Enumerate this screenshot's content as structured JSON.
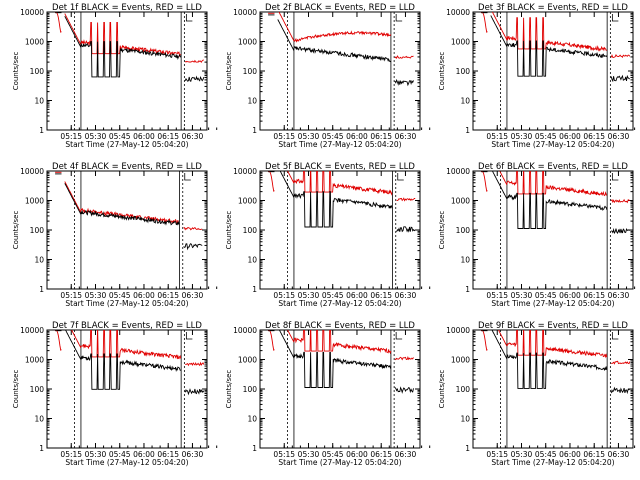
{
  "colors": {
    "events": "#000000",
    "lld": "#e00000",
    "axes": "#000000",
    "background": "#ffffff"
  },
  "common": {
    "xlabel": "Start Time (27-May-12 05:04:20)",
    "ylabel": "Counts/sec",
    "xtick_labels": [
      "05:15",
      "05:30",
      "05:45",
      "06:00",
      "06:15",
      "06:30"
    ],
    "ytick_labels": [
      "1",
      "10",
      "100",
      "1000",
      "10000"
    ],
    "yscale": "log",
    "ylim": [
      1,
      10000
    ],
    "xlim_minutes_after_start": [
      -4,
      95
    ]
  },
  "chart_data": [
    {
      "type": "line",
      "title": "Det 1f BLACK = Events, RED = LLD",
      "profile": "spiky",
      "lld_level": 1100,
      "ev_level": 900,
      "gap_start": "05:09",
      "gap_end": "05:11",
      "mark1": "05:17",
      "mark2": "05:21",
      "mark3": "06:23",
      "mark4": "06:25"
    },
    {
      "type": "line",
      "title": "Det 2f BLACK = Events, RED = LLD",
      "profile": "flat",
      "lld_level": 1500,
      "ev_level": 700,
      "gap_start": "05:09",
      "gap_end": "05:11",
      "mark1": "05:17",
      "mark2": "05:21",
      "mark3": "06:21",
      "mark4": "06:23"
    },
    {
      "type": "line",
      "title": "Det 3f BLACK = Events, RED = LLD",
      "profile": "spiky",
      "lld_level": 1600,
      "ev_level": 950,
      "gap_start": "05:09",
      "gap_end": "05:11",
      "mark1": "05:17",
      "mark2": "05:21",
      "mark3": "06:23",
      "mark4": "06:25"
    },
    {
      "type": "line",
      "title": "Det 4f BLACK = Events, RED = LLD",
      "profile": "smooth",
      "lld_level": 550,
      "ev_level": 480,
      "gap_start": "05:09",
      "gap_end": "05:11",
      "mark1": "05:17",
      "mark2": "05:21",
      "mark3": "06:22",
      "mark4": "06:24"
    },
    {
      "type": "line",
      "title": "Det 5f BLACK = Events, RED = LLD",
      "profile": "hot",
      "lld_level": 5500,
      "ev_level": 1800,
      "gap_start": "05:09",
      "gap_end": "05:11",
      "mark1": "05:17",
      "mark2": "05:21",
      "mark3": "06:22",
      "mark4": "06:24"
    },
    {
      "type": "line",
      "title": "Det 6f BLACK = Events, RED = LLD",
      "profile": "hot",
      "lld_level": 4800,
      "ev_level": 1600,
      "gap_start": "05:09",
      "gap_end": "05:11",
      "mark1": "05:17",
      "mark2": "05:21",
      "mark3": "06:23",
      "mark4": "06:25"
    },
    {
      "type": "line",
      "title": "Det 7f BLACK = Events, RED = LLD",
      "profile": "spiky",
      "lld_level": 3500,
      "ev_level": 1400,
      "gap_start": "05:09",
      "gap_end": "05:11",
      "mark1": "05:17",
      "mark2": "05:21",
      "mark3": "06:23",
      "mark4": "06:25"
    },
    {
      "type": "line",
      "title": "Det 8f BLACK = Events, RED = LLD",
      "profile": "hot",
      "lld_level": 5500,
      "ev_level": 1600,
      "gap_start": "05:09",
      "gap_end": "05:11",
      "mark1": "05:17",
      "mark2": "05:21",
      "mark3": "06:21",
      "mark4": "06:23"
    },
    {
      "type": "line",
      "title": "Det 9f BLACK = Events, RED = LLD",
      "profile": "spiky",
      "lld_level": 4000,
      "ev_level": 1500,
      "gap_start": "05:09",
      "gap_end": "05:11",
      "mark1": "05:17",
      "mark2": "05:21",
      "mark3": "06:23",
      "mark4": "06:25"
    }
  ]
}
